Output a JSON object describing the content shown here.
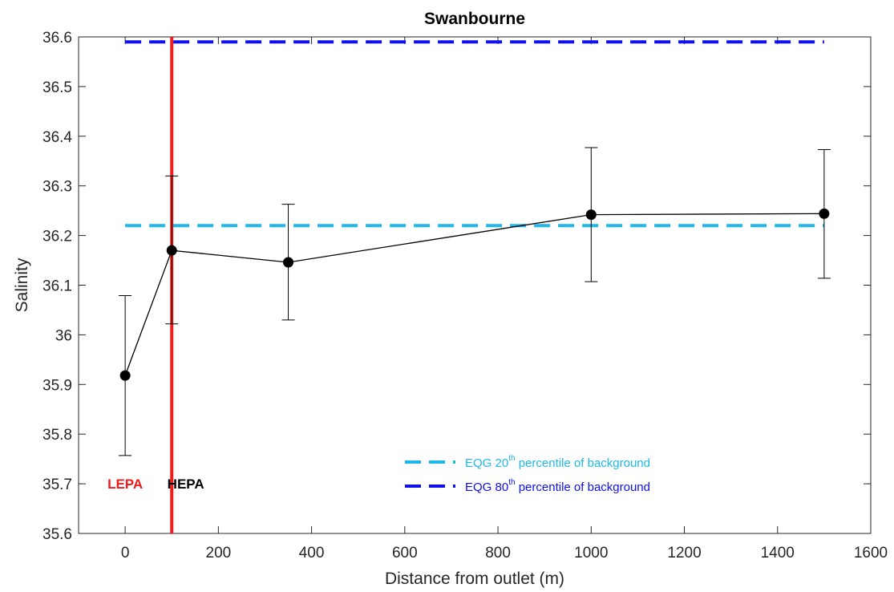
{
  "chart_data": {
    "type": "line",
    "title": "Swanbourne",
    "xlabel": "Distance from outlet (m)",
    "ylabel": "Salinity",
    "xlim": [
      -100,
      1600
    ],
    "ylim": [
      35.6,
      36.6
    ],
    "xticks": [
      0,
      200,
      400,
      600,
      800,
      1000,
      1200,
      1400,
      1600
    ],
    "yticks": [
      35.6,
      35.7,
      35.8,
      35.9,
      36,
      36.1,
      36.2,
      36.3,
      36.4,
      36.5,
      36.6
    ],
    "xtick_labels": [
      "0",
      "200",
      "400",
      "600",
      "800",
      "1000",
      "1200",
      "1400",
      "1600"
    ],
    "ytick_labels": [
      "35.6",
      "35.7",
      "35.8",
      "35.9",
      "36",
      "36.1",
      "36.2",
      "36.3",
      "36.4",
      "36.5",
      "36.6"
    ],
    "grid": false,
    "series": [
      {
        "x": [
          0,
          100,
          350,
          1000,
          1500
        ],
        "y": [
          35.918,
          36.17,
          36.146,
          36.242,
          36.244
        ],
        "err_low": [
          35.757,
          36.022,
          36.03,
          36.107,
          36.114
        ],
        "err_high": [
          36.079,
          36.32,
          36.263,
          36.377,
          36.373
        ],
        "color": "#000000"
      }
    ],
    "reference_lines": [
      {
        "orientation": "horizontal",
        "y": 36.22,
        "x_from": 0,
        "x_to": 1500,
        "style": "dashed",
        "color": "#1fb8e8"
      },
      {
        "orientation": "horizontal",
        "y": 36.59,
        "x_from": 0,
        "x_to": 1500,
        "style": "dashed",
        "color": "#1010ee"
      },
      {
        "orientation": "vertical",
        "x": 100,
        "style": "solid",
        "color": "#ee1c1c"
      }
    ],
    "annotations": [
      {
        "text": "LEPA",
        "x": 0,
        "y": 35.7,
        "color": "#ee1c1c"
      },
      {
        "text": "HEPA",
        "x": 130,
        "y": 35.7,
        "color": "#000000"
      }
    ],
    "legend": {
      "placement": "bottom-center",
      "entries": [
        {
          "pre": "EQG 20",
          "sup": "th",
          "post": " percentile of background",
          "color": "#1fb8e8",
          "ref": 0
        },
        {
          "pre": "EQG 80",
          "sup": "th",
          "post": " percentile of background",
          "color": "#1010ee",
          "ref": 1
        }
      ]
    }
  }
}
